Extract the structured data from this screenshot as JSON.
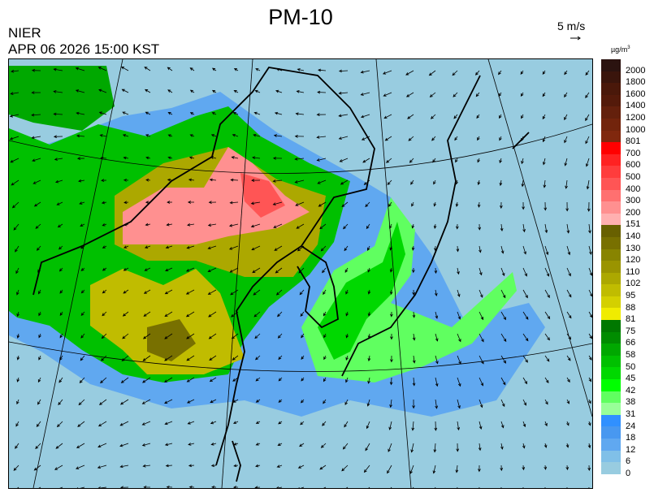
{
  "header": {
    "title": "PM-10",
    "org": "NIER",
    "datetime": "APR 06 2026 15:00 KST",
    "wind_scale_label": "5 m/s",
    "unit": "µg/m",
    "unit_sup": "3"
  },
  "legend": {
    "labels": [
      "2000",
      "1800",
      "1600",
      "1400",
      "1200",
      "1000",
      "801",
      "700",
      "600",
      "500",
      "400",
      "300",
      "200",
      "151",
      "140",
      "130",
      "120",
      "110",
      "102",
      "95",
      "88",
      "81",
      "75",
      "66",
      "58",
      "50",
      "45",
      "42",
      "38",
      "31",
      "24",
      "18",
      "12",
      "6",
      "0"
    ],
    "colors": [
      "#2b1310",
      "#3a150c",
      "#4a180a",
      "#541a0a",
      "#64200c",
      "#72240c",
      "#80280e",
      "#ff0000",
      "#ff2222",
      "#ff3c3c",
      "#ff5555",
      "#ff7070",
      "#ff9090",
      "#ffb0b0",
      "#686000",
      "#787000",
      "#888400",
      "#9a9400",
      "#aca800",
      "#c0bc00",
      "#d4d000",
      "#f0ec00",
      "#007800",
      "#008c00",
      "#00a800",
      "#00c000",
      "#00d800",
      "#00ff00",
      "#60ff60",
      "#98ff98",
      "#3090ff",
      "#4898f0",
      "#60a8f0",
      "#80c0e8",
      "#98cce0"
    ]
  },
  "map": {
    "background_color": "#98cce0",
    "overlay_icon": "wind-vector-arrows"
  }
}
